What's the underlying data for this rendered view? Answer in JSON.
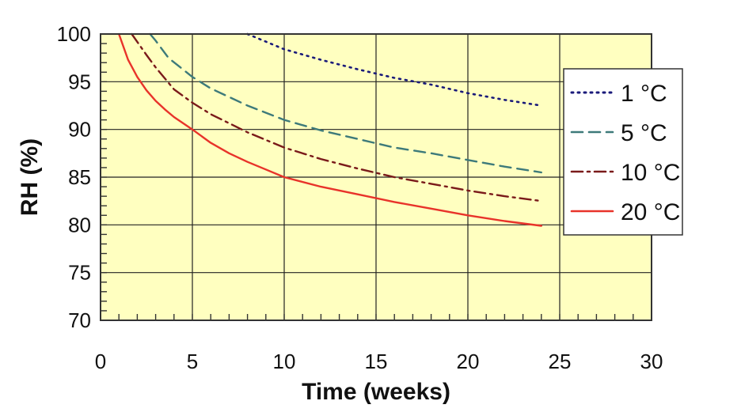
{
  "chart_data": {
    "type": "line",
    "title": "",
    "xlabel": "Time (weeks)",
    "ylabel": "RH (%)",
    "xlim": [
      0,
      30
    ],
    "ylim": [
      70,
      100
    ],
    "xticks": [
      0,
      5,
      10,
      15,
      20,
      25,
      30
    ],
    "yticks": [
      70,
      75,
      80,
      85,
      90,
      95,
      100
    ],
    "grid": true,
    "legend_position": "right",
    "plot_background": "#ffffc0",
    "series": [
      {
        "name": "1 °C",
        "color": "#1a1a7a",
        "style": "dotted",
        "points": [
          [
            8,
            100
          ],
          [
            10,
            98.4
          ],
          [
            12,
            97.3
          ],
          [
            14,
            96.3
          ],
          [
            16,
            95.4
          ],
          [
            18,
            94.7
          ],
          [
            20,
            93.8
          ],
          [
            22,
            93.1
          ],
          [
            24,
            92.5
          ]
        ]
      },
      {
        "name": "5 °C",
        "color": "#3d7a7a",
        "style": "dashed",
        "points": [
          [
            2.7,
            100
          ],
          [
            3,
            99.3
          ],
          [
            3.7,
            97.5
          ],
          [
            5,
            95.5
          ],
          [
            6,
            94.3
          ],
          [
            8,
            92.5
          ],
          [
            10,
            91.0
          ],
          [
            12,
            89.9
          ],
          [
            14,
            89.0
          ],
          [
            16,
            88.1
          ],
          [
            18,
            87.5
          ],
          [
            20,
            86.8
          ],
          [
            22,
            86.1
          ],
          [
            24,
            85.5
          ]
        ]
      },
      {
        "name": "10 °C",
        "color": "#7a1a1a",
        "style": "dashdot",
        "points": [
          [
            1.7,
            100
          ],
          [
            2.5,
            97.8
          ],
          [
            3,
            96.5
          ],
          [
            4,
            94.2
          ],
          [
            5,
            92.8
          ],
          [
            6,
            91.6
          ],
          [
            8,
            89.7
          ],
          [
            10,
            88.1
          ],
          [
            12,
            86.9
          ],
          [
            14,
            85.9
          ],
          [
            16,
            85.0
          ],
          [
            18,
            84.3
          ],
          [
            20,
            83.6
          ],
          [
            22,
            83.0
          ],
          [
            24,
            82.5
          ]
        ]
      },
      {
        "name": "20 °C",
        "color": "#e8332a",
        "style": "solid",
        "points": [
          [
            1,
            100
          ],
          [
            1.5,
            97.3
          ],
          [
            2,
            95.5
          ],
          [
            2.5,
            94.1
          ],
          [
            3,
            93.0
          ],
          [
            3.5,
            92.1
          ],
          [
            4,
            91.3
          ],
          [
            5,
            90.0
          ],
          [
            6,
            88.6
          ],
          [
            7,
            87.5
          ],
          [
            8,
            86.6
          ],
          [
            9,
            85.8
          ],
          [
            10,
            85.0
          ],
          [
            12,
            84.0
          ],
          [
            14,
            83.2
          ],
          [
            16,
            82.4
          ],
          [
            18,
            81.7
          ],
          [
            20,
            81.0
          ],
          [
            22,
            80.4
          ],
          [
            24,
            79.9
          ]
        ]
      }
    ]
  }
}
